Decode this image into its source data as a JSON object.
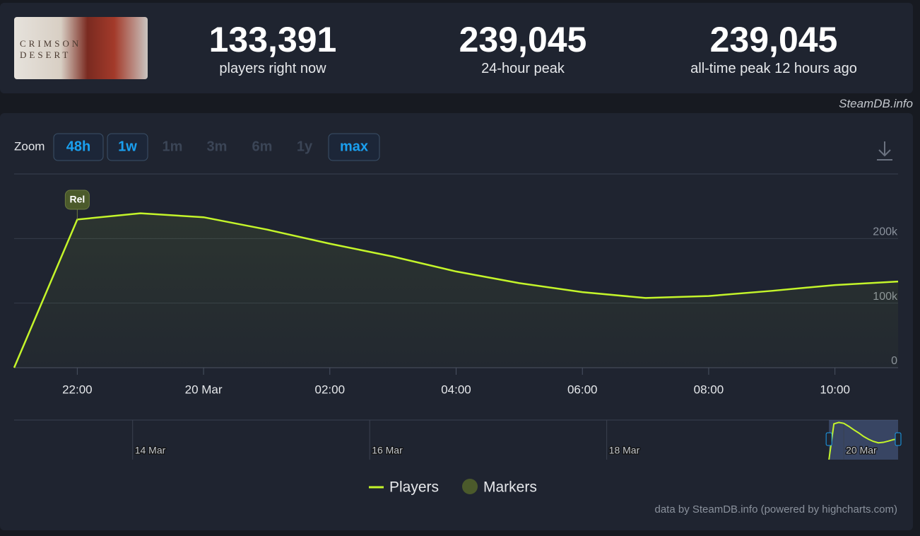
{
  "header": {
    "game_logo_text": "CRIMSON DESERT",
    "stats": [
      {
        "value": "133,391",
        "label": "players right now"
      },
      {
        "value": "239,045",
        "label": "24-hour peak"
      },
      {
        "value": "239,045",
        "label": "all-time peak 12 hours ago"
      }
    ],
    "watermark": "SteamDB.info"
  },
  "zoom": {
    "label": "Zoom",
    "buttons": [
      "48h",
      "1w",
      "1m",
      "3m",
      "6m",
      "1y",
      "max"
    ],
    "enabled": [
      true,
      true,
      false,
      false,
      false,
      false,
      true
    ]
  },
  "chart_data": {
    "type": "line",
    "x": [
      -3,
      -2,
      -1,
      0,
      1,
      2,
      3,
      4,
      5,
      6,
      7,
      8,
      9,
      10,
      11
    ],
    "series": [
      {
        "name": "Players",
        "color": "#c4f52a",
        "values": [
          0,
          229500,
          239045,
          233000,
          214000,
          192000,
          172000,
          149000,
          131000,
          117000,
          108000,
          111000,
          119000,
          128000,
          133391
        ]
      }
    ],
    "xlim": [
      -3,
      11
    ],
    "xticks": [
      {
        "value": -2,
        "label": "22:00"
      },
      {
        "value": 0,
        "label": "20 Mar"
      },
      {
        "value": 2,
        "label": "02:00"
      },
      {
        "value": 4,
        "label": "04:00"
      },
      {
        "value": 6,
        "label": "06:00"
      },
      {
        "value": 8,
        "label": "08:00"
      },
      {
        "value": 10,
        "label": "10:00"
      }
    ],
    "ylim": [
      0,
      300000
    ],
    "yticks": [
      0,
      {
        "value": 100000,
        "label": "100k"
      },
      {
        "value": 200000,
        "label": "200k"
      }
    ],
    "grid": true,
    "markers": {
      "name": "Markers",
      "color": "#4b5a2b",
      "items": [
        {
          "x": -2,
          "label": "Rel"
        }
      ]
    },
    "navigator": {
      "xlim": [
        -168,
        11
      ],
      "xticks": [
        {
          "value": -144,
          "label": "14 Mar"
        },
        {
          "value": -96,
          "label": "16 Mar"
        },
        {
          "value": -48,
          "label": "18 Mar"
        },
        {
          "value": 0,
          "label": "20 Mar"
        }
      ]
    },
    "credit": "data by SteamDB.info (powered by highcharts.com)"
  }
}
